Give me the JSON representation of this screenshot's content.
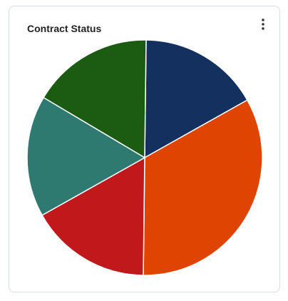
{
  "chart_data": {
    "type": "pie",
    "title": "Contract Status",
    "categories": [
      null,
      null,
      null,
      null,
      null
    ],
    "values": [
      1,
      2,
      1,
      1,
      1
    ],
    "colors": [
      "#13305f",
      "#e04403",
      "#c0181b",
      "#2f7a70",
      "#1c5c12"
    ]
  }
}
